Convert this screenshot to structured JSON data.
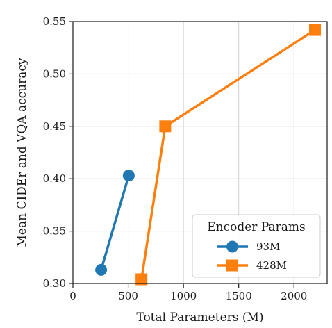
{
  "chart_data": {
    "type": "line",
    "title": "",
    "xlabel": "Total Parameters (M)",
    "ylabel": "Mean CIDEr and VQA accuracy",
    "xlim": [
      0,
      2300
    ],
    "ylim": [
      0.3,
      0.55
    ],
    "xticks": [
      0,
      500,
      1000,
      1500,
      2000
    ],
    "xtick_labels": [
      "0",
      "500",
      "1000",
      "1500",
      "2000"
    ],
    "yticks": [
      0.3,
      0.35,
      0.4,
      0.45,
      0.5,
      0.55
    ],
    "ytick_labels": [
      "0.30",
      "0.35",
      "0.40",
      "0.45",
      "0.50",
      "0.55"
    ],
    "grid": true,
    "legend": {
      "title": "Encoder Params",
      "placement": "lower-right"
    },
    "series": [
      {
        "name": "93M",
        "marker": "circle",
        "color": "#1f77b4",
        "x": [
          255,
          505
        ],
        "y": [
          0.313,
          0.403
        ]
      },
      {
        "name": "428M",
        "marker": "square",
        "color": "#ff7f0e",
        "x": [
          620,
          835,
          2190
        ],
        "y": [
          0.304,
          0.45,
          0.542
        ]
      }
    ]
  }
}
